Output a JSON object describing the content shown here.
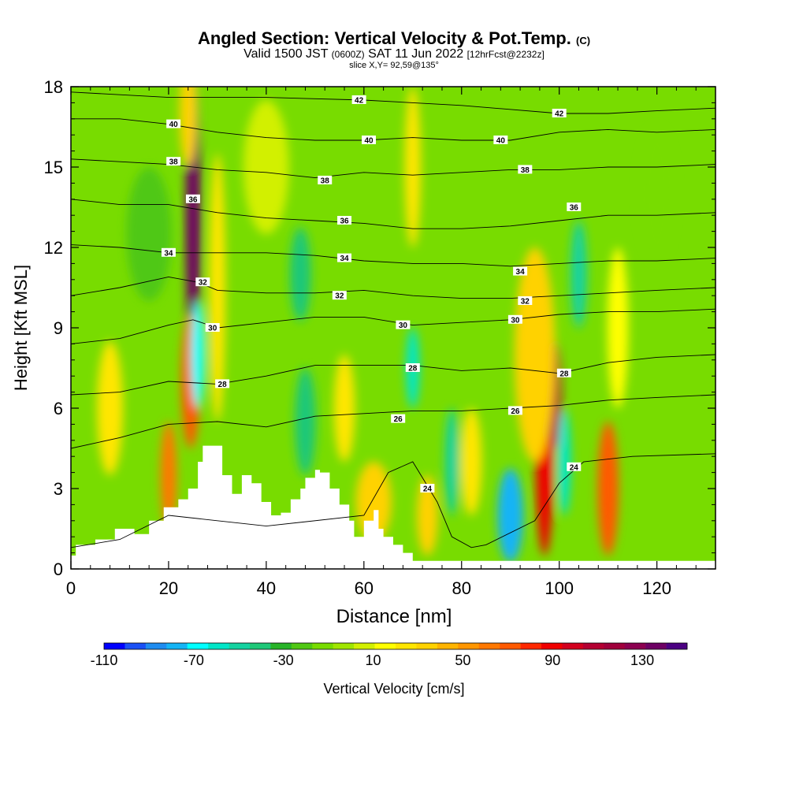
{
  "header": {
    "title": "Angled Section: Vertical Velocity & Pot.Temp.",
    "title_suffix": "(C)",
    "valid_prefix": "Valid 1500 JST",
    "valid_utc": "(0600Z)",
    "valid_date": "SAT 11 Jun 2022",
    "forecast": "[12hrFcst@2232z]",
    "slice": "slice X,Y= 92,59@135°"
  },
  "chart_data": {
    "type": "heatmap",
    "xlabel": "Distance [nm]",
    "ylabel": "Height [Kft MSL]",
    "xlim": [
      0,
      132
    ],
    "ylim": [
      0,
      18
    ],
    "x_ticks": [
      "0",
      "20",
      "40",
      "60",
      "80",
      "100",
      "120"
    ],
    "y_ticks": [
      "0",
      "3",
      "6",
      "9",
      "12",
      "15",
      "18"
    ],
    "colorbar": {
      "label": "Vertical Velocity [cm/s]",
      "range": [
        -110,
        150
      ],
      "tick_labels": [
        "-110",
        "-70",
        "-30",
        "10",
        "50",
        "90",
        "130"
      ],
      "colors": [
        "#0000ff",
        "#1a50f5",
        "#1e8cf0",
        "#14b4f5",
        "#00ffff",
        "#00e6c8",
        "#14d2a0",
        "#1ec878",
        "#28b428",
        "#50c814",
        "#78dc00",
        "#a0e600",
        "#d2f000",
        "#ffff00",
        "#ffe600",
        "#ffd200",
        "#ffb400",
        "#ff9600",
        "#ff7800",
        "#ff5a00",
        "#ff2800",
        "#f00000",
        "#d2001e",
        "#b40032",
        "#a0003c",
        "#8c0050",
        "#6e0064",
        "#4b0082"
      ]
    },
    "terrain": [
      [
        0,
        0.5
      ],
      [
        1,
        0.9
      ],
      [
        5,
        1.1
      ],
      [
        9,
        1.5
      ],
      [
        13,
        1.3
      ],
      [
        16,
        1.8
      ],
      [
        19,
        2.3
      ],
      [
        22,
        2.6
      ],
      [
        24,
        3.0
      ],
      [
        26,
        4.0
      ],
      [
        27,
        4.6
      ],
      [
        29,
        4.6
      ],
      [
        31,
        3.5
      ],
      [
        33,
        2.8
      ],
      [
        35,
        3.5
      ],
      [
        37,
        3.2
      ],
      [
        39,
        2.5
      ],
      [
        41,
        2.0
      ],
      [
        43,
        2.1
      ],
      [
        45,
        2.6
      ],
      [
        47,
        3.0
      ],
      [
        48,
        3.4
      ],
      [
        50,
        3.7
      ],
      [
        51,
        3.6
      ],
      [
        53,
        3.0
      ],
      [
        55,
        2.4
      ],
      [
        57,
        1.8
      ],
      [
        58,
        1.2
      ],
      [
        60,
        1.8
      ],
      [
        62,
        2.2
      ],
      [
        63,
        1.5
      ],
      [
        64,
        1.2
      ],
      [
        66,
        0.9
      ],
      [
        68,
        0.6
      ],
      [
        70,
        0.3
      ],
      [
        72,
        0.3
      ],
      [
        132,
        0.3
      ]
    ],
    "theta_contours": [
      {
        "label": "24",
        "points": [
          [
            0,
            0.8
          ],
          [
            10,
            1.1
          ],
          [
            20,
            2.0
          ],
          [
            40,
            1.6
          ],
          [
            60,
            2.0
          ],
          [
            65,
            3.6
          ],
          [
            70,
            4.0
          ],
          [
            75,
            2.5
          ],
          [
            78,
            1.2
          ],
          [
            82,
            0.8
          ],
          [
            85,
            0.9
          ],
          [
            95,
            1.8
          ],
          [
            100,
            3.2
          ],
          [
            105,
            4.0
          ],
          [
            115,
            4.2
          ],
          [
            132,
            4.3
          ]
        ],
        "labels": [
          [
            73,
            3.0
          ],
          [
            103,
            3.8
          ]
        ]
      },
      {
        "label": "26",
        "points": [
          [
            0,
            4.5
          ],
          [
            10,
            4.9
          ],
          [
            20,
            5.4
          ],
          [
            30,
            5.5
          ],
          [
            40,
            5.3
          ],
          [
            50,
            5.7
          ],
          [
            60,
            5.8
          ],
          [
            70,
            5.9
          ],
          [
            80,
            5.9
          ],
          [
            90,
            6.0
          ],
          [
            100,
            6.1
          ],
          [
            110,
            6.3
          ],
          [
            120,
            6.4
          ],
          [
            132,
            6.5
          ]
        ],
        "labels": [
          [
            67,
            5.6
          ],
          [
            91,
            5.9
          ]
        ]
      },
      {
        "label": "28",
        "points": [
          [
            0,
            6.5
          ],
          [
            10,
            6.6
          ],
          [
            20,
            7.0
          ],
          [
            30,
            6.9
          ],
          [
            40,
            7.2
          ],
          [
            50,
            7.6
          ],
          [
            60,
            7.6
          ],
          [
            70,
            7.6
          ],
          [
            80,
            7.4
          ],
          [
            90,
            7.5
          ],
          [
            100,
            7.3
          ],
          [
            110,
            7.7
          ],
          [
            120,
            7.9
          ],
          [
            132,
            8.0
          ]
        ],
        "labels": [
          [
            31,
            6.9
          ],
          [
            70,
            7.5
          ],
          [
            101,
            7.3
          ]
        ]
      },
      {
        "label": "30",
        "points": [
          [
            0,
            8.4
          ],
          [
            10,
            8.6
          ],
          [
            20,
            9.1
          ],
          [
            25,
            9.3
          ],
          [
            30,
            9.0
          ],
          [
            40,
            9.2
          ],
          [
            50,
            9.4
          ],
          [
            60,
            9.4
          ],
          [
            70,
            9.1
          ],
          [
            80,
            9.2
          ],
          [
            90,
            9.3
          ],
          [
            100,
            9.5
          ],
          [
            110,
            9.6
          ],
          [
            120,
            9.6
          ],
          [
            132,
            9.7
          ]
        ],
        "labels": [
          [
            29,
            9.0
          ],
          [
            68,
            9.1
          ],
          [
            91,
            9.3
          ]
        ]
      },
      {
        "label": "32",
        "points": [
          [
            0,
            10.2
          ],
          [
            10,
            10.5
          ],
          [
            20,
            10.9
          ],
          [
            26,
            10.7
          ],
          [
            30,
            10.4
          ],
          [
            40,
            10.3
          ],
          [
            50,
            10.3
          ],
          [
            60,
            10.4
          ],
          [
            70,
            10.2
          ],
          [
            80,
            10.1
          ],
          [
            90,
            10.1
          ],
          [
            100,
            10.2
          ],
          [
            110,
            10.3
          ],
          [
            120,
            10.4
          ],
          [
            132,
            10.5
          ]
        ],
        "labels": [
          [
            27,
            10.7
          ],
          [
            55,
            10.2
          ],
          [
            93,
            10.0
          ]
        ]
      },
      {
        "label": "34",
        "points": [
          [
            0,
            12.1
          ],
          [
            10,
            12.0
          ],
          [
            20,
            11.8
          ],
          [
            30,
            11.8
          ],
          [
            40,
            11.8
          ],
          [
            50,
            11.7
          ],
          [
            60,
            11.5
          ],
          [
            70,
            11.4
          ],
          [
            80,
            11.4
          ],
          [
            90,
            11.3
          ],
          [
            100,
            11.4
          ],
          [
            110,
            11.5
          ],
          [
            120,
            11.5
          ],
          [
            132,
            11.6
          ]
        ],
        "labels": [
          [
            20,
            11.8
          ],
          [
            56,
            11.6
          ],
          [
            92,
            11.1
          ]
        ]
      },
      {
        "label": "36",
        "points": [
          [
            0,
            13.8
          ],
          [
            10,
            13.6
          ],
          [
            20,
            13.6
          ],
          [
            30,
            13.3
          ],
          [
            40,
            13.1
          ],
          [
            50,
            13.0
          ],
          [
            60,
            12.9
          ],
          [
            70,
            12.7
          ],
          [
            80,
            12.7
          ],
          [
            90,
            12.8
          ],
          [
            100,
            13.0
          ],
          [
            110,
            13.2
          ],
          [
            120,
            13.2
          ],
          [
            132,
            13.3
          ]
        ],
        "labels": [
          [
            25,
            13.8
          ],
          [
            56,
            13.0
          ],
          [
            103,
            13.5
          ]
        ]
      },
      {
        "label": "38",
        "points": [
          [
            0,
            15.3
          ],
          [
            10,
            15.2
          ],
          [
            20,
            15.1
          ],
          [
            30,
            14.9
          ],
          [
            40,
            14.8
          ],
          [
            50,
            14.6
          ],
          [
            60,
            14.8
          ],
          [
            70,
            14.7
          ],
          [
            80,
            14.8
          ],
          [
            90,
            14.9
          ],
          [
            100,
            14.9
          ],
          [
            110,
            15.0
          ],
          [
            120,
            15.0
          ],
          [
            132,
            15.1
          ]
        ],
        "labels": [
          [
            21,
            15.2
          ],
          [
            52,
            14.5
          ],
          [
            93,
            14.9
          ]
        ]
      },
      {
        "label": "40",
        "points": [
          [
            0,
            16.8
          ],
          [
            10,
            16.8
          ],
          [
            20,
            16.6
          ],
          [
            30,
            16.3
          ],
          [
            40,
            16.1
          ],
          [
            50,
            16.0
          ],
          [
            60,
            16.0
          ],
          [
            70,
            16.1
          ],
          [
            80,
            16.0
          ],
          [
            90,
            16.0
          ],
          [
            100,
            16.3
          ],
          [
            110,
            16.4
          ],
          [
            120,
            16.3
          ],
          [
            132,
            16.4
          ]
        ],
        "labels": [
          [
            21,
            16.6
          ],
          [
            61,
            16.0
          ],
          [
            88,
            16.0
          ]
        ]
      },
      {
        "label": "42",
        "points": [
          [
            0,
            17.8
          ],
          [
            20,
            17.6
          ],
          [
            40,
            17.6
          ],
          [
            60,
            17.5
          ],
          [
            80,
            17.3
          ],
          [
            100,
            17.0
          ],
          [
            110,
            17.0
          ],
          [
            120,
            17.1
          ],
          [
            132,
            17.2
          ]
        ],
        "labels": [
          [
            59,
            17.5
          ],
          [
            100,
            17.0
          ]
        ]
      }
    ],
    "velocity_cells": [
      {
        "x": 25,
        "y": 13.0,
        "w": 1.8,
        "h": 11.0,
        "v": 140
      },
      {
        "x": 24.5,
        "y": 7.0,
        "w": 2.5,
        "h": 5.0,
        "v": 70
      },
      {
        "x": 24,
        "y": 17.0,
        "w": 2.2,
        "h": 4.0,
        "v": 30
      },
      {
        "x": 26,
        "y": 8.0,
        "w": 1.5,
        "h": 4.0,
        "v": -65
      },
      {
        "x": 97,
        "y": 4.5,
        "w": 2.5,
        "h": 8.0,
        "v": 90
      },
      {
        "x": 99,
        "y": 6.5,
        "w": 1.5,
        "h": 4.0,
        "v": 110
      },
      {
        "x": 95,
        "y": 8.0,
        "w": 7.0,
        "h": 8.0,
        "v": 30
      },
      {
        "x": 90,
        "y": 2.0,
        "w": 4.0,
        "h": 3.5,
        "v": -75
      },
      {
        "x": 101,
        "y": 4.0,
        "w": 1.5,
        "h": 4.0,
        "v": -55
      },
      {
        "x": 110,
        "y": 3.0,
        "w": 3.0,
        "h": 5.0,
        "v": 70
      },
      {
        "x": 104,
        "y": 11.0,
        "w": 2.0,
        "h": 4.0,
        "v": -50
      },
      {
        "x": 70,
        "y": 7.5,
        "w": 1.5,
        "h": 3.0,
        "v": -55
      },
      {
        "x": 78,
        "y": 4.0,
        "w": 1.5,
        "h": 4.0,
        "v": -50
      },
      {
        "x": 47,
        "y": 11.0,
        "w": 3.0,
        "h": 3.5,
        "v": -45
      },
      {
        "x": 48,
        "y": 5.5,
        "w": 3.0,
        "h": 4.0,
        "v": -40
      },
      {
        "x": 16,
        "y": 12.5,
        "w": 8.0,
        "h": 5.0,
        "v": -20
      },
      {
        "x": 20,
        "y": 3.5,
        "w": 2.0,
        "h": 4.0,
        "v": 60
      },
      {
        "x": 30,
        "y": 10.5,
        "w": 2.0,
        "h": 10.0,
        "v": 20
      },
      {
        "x": 62,
        "y": 2.5,
        "w": 6.0,
        "h": 3.0,
        "v": 30
      },
      {
        "x": 82,
        "y": 4.0,
        "w": 3.0,
        "h": 4.0,
        "v": 25
      },
      {
        "x": 73,
        "y": 2.0,
        "w": 3.0,
        "h": 3.0,
        "v": 30
      },
      {
        "x": 70,
        "y": 15.0,
        "w": 2.0,
        "h": 6.0,
        "v": 25
      },
      {
        "x": 112,
        "y": 9.0,
        "w": 3.0,
        "h": 6.0,
        "v": 15
      },
      {
        "x": 8,
        "y": 6.0,
        "w": 4.0,
        "h": 5.0,
        "v": 20
      },
      {
        "x": 120,
        "y": 14.0,
        "w": 6.0,
        "h": 5.0,
        "v": -10
      },
      {
        "x": 40,
        "y": 15.0,
        "w": 8.0,
        "h": 5.0,
        "v": 5
      },
      {
        "x": 56,
        "y": 6.0,
        "w": 3.0,
        "h": 4.0,
        "v": 25
      }
    ]
  }
}
